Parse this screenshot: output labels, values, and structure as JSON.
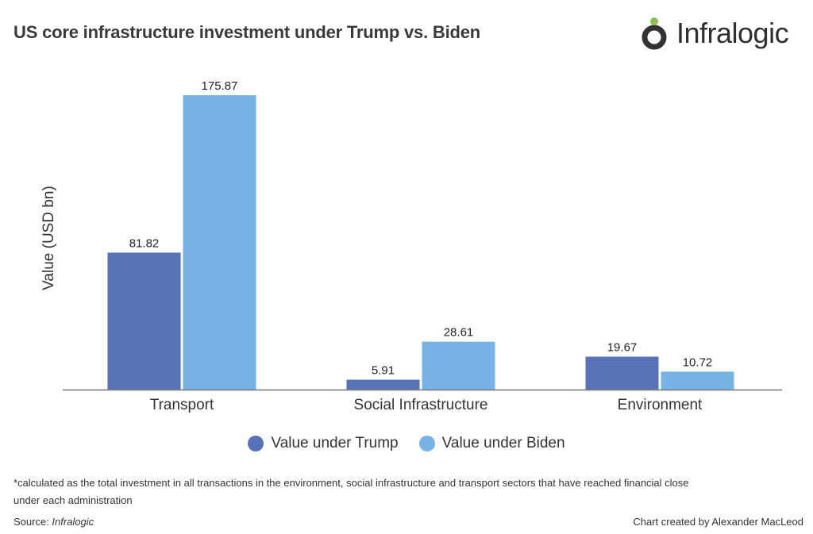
{
  "title": "US core infrastructure investment under Trump vs. Biden",
  "logo": {
    "text": "Infralogic",
    "ring_color": "#333333",
    "dot_color": "#8cc152"
  },
  "chart_data": {
    "type": "bar",
    "title": "US core infrastructure investment under Trump vs. Biden",
    "xlabel": "",
    "ylabel": "Value (USD bn)",
    "categories": [
      "Transport",
      "Social Infrastructure",
      "Environment"
    ],
    "series": [
      {
        "name": "Value under Trump",
        "color": "#5872b7",
        "values": [
          81.82,
          5.91,
          19.67
        ],
        "labels": [
          "81.82",
          "5.91",
          "19.67"
        ]
      },
      {
        "name": "Value under Biden",
        "color": "#77b4e5",
        "values": [
          175.87,
          28.61,
          10.72
        ],
        "labels": [
          "175.87",
          "28.61",
          "10.72"
        ]
      }
    ],
    "ylim": [
      0,
      175.87
    ],
    "grid": false,
    "y_ticks_shown": false,
    "legend_placement": "bottom"
  },
  "footnote": "*calculated as the total investment in all transactions in the environment, social infrastructure and transport sectors that have reached financial close under each administration",
  "source_label": "Source: ",
  "source_value": "Infralogic",
  "credit": "Chart created by Alexander MacLeod"
}
